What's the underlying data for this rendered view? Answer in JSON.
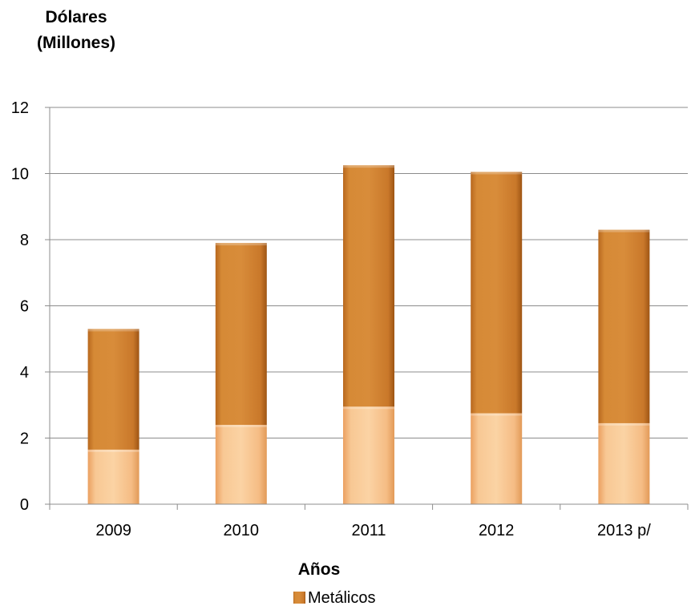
{
  "chart_data": {
    "type": "bar",
    "stacked": true,
    "ylabel_lines": [
      "Dólares",
      "(Millones)"
    ],
    "xlabel": "Años",
    "categories": [
      "2009",
      "2010",
      "2011",
      "2012",
      "2013 p/"
    ],
    "ylim": [
      0,
      12
    ],
    "yticks": [
      0,
      2,
      4,
      6,
      8,
      10,
      12
    ],
    "grid": true,
    "legend_position": "bottom",
    "series": [
      {
        "values": [
          1.65,
          2.4,
          2.95,
          2.75,
          2.45
        ],
        "color": "#F2B47A"
      },
      {
        "name": "Metálicos",
        "values": [
          3.65,
          5.5,
          7.3,
          7.3,
          5.85
        ],
        "color": "#D3852C"
      }
    ]
  }
}
